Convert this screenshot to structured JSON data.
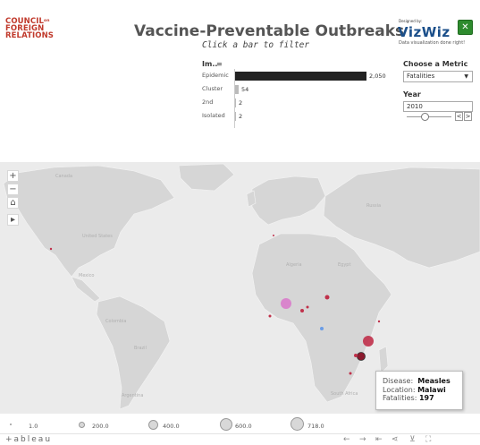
{
  "header": {
    "org_line1": "COUNCIL",
    "org_sup": "on",
    "org_line2": "FOREIGN",
    "org_line3": "RELATIONS",
    "title": "Vaccine-Preventable Outbreaks",
    "subtitle": "Click a bar to filter",
    "vizwiz_designed": "Designed by:",
    "vizwiz_logo": "VizWiz",
    "vizwiz_tag": "Data visualization done right!"
  },
  "bar_chart": {
    "header": "Im..",
    "rows": [
      {
        "label": "Epidemic",
        "value": "2,050",
        "fraction": 1.0
      },
      {
        "label": "Cluster",
        "value": "54",
        "fraction": 0.027
      },
      {
        "label": "2nd",
        "value": "2",
        "fraction": 0.001
      },
      {
        "label": "Isolated",
        "value": "2",
        "fraction": 0.001
      }
    ]
  },
  "controls": {
    "metric_label": "Choose a Metric",
    "metric_value": "Fatalities",
    "year_label": "Year",
    "year_value": "2010",
    "prev": "<",
    "next": ">"
  },
  "map": {
    "labels": {
      "canada": "Canada",
      "united_states": "United States",
      "mexico": "Mexico",
      "brazil": "Brazil",
      "colombia": "Colombia",
      "argentina": "Argentina",
      "russia": "Russia",
      "algeria": "Algeria",
      "egypt": "Egypt",
      "south_africa": "South Africa"
    },
    "zoom_in": "+",
    "zoom_out": "−",
    "home": "⌂",
    "play": "▸"
  },
  "tooltip": {
    "disease_label": "Disease:",
    "disease_value": "Measles",
    "location_label": "Location:",
    "location_value": "Malawi",
    "fatalities_label": "Fatalities:",
    "fatalities_value": "197"
  },
  "legend": {
    "items": [
      "1.0",
      "200.0",
      "400.0",
      "600.0",
      "718.0"
    ]
  },
  "footer": {
    "brand": "+ableau"
  },
  "colors": {
    "map_bg": "#ebebeb",
    "land": "#d6d6d6",
    "bar": "#222222",
    "bubble_red": "#c0304a",
    "bubble_pink": "#d96ac8",
    "bubble_blue": "#6a9ce6",
    "cfr_red": "#c0392b",
    "vizwiz_blue": "#1b4f8a"
  }
}
